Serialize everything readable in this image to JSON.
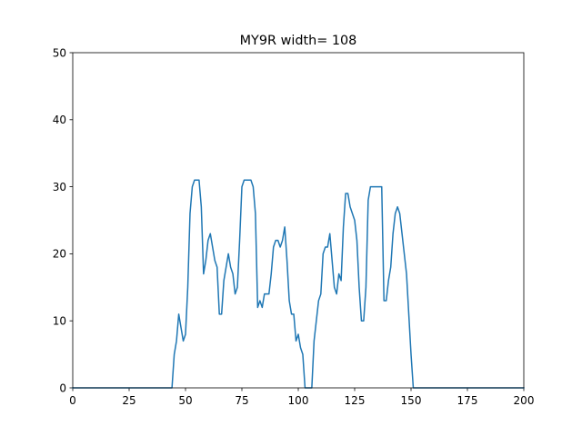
{
  "chart_data": {
    "type": "line",
    "title": "MY9R width= 108",
    "xlabel": "",
    "ylabel": "",
    "xlim": [
      0,
      200
    ],
    "ylim": [
      0,
      50
    ],
    "xticks": [
      0,
      25,
      50,
      75,
      100,
      125,
      150,
      175,
      200
    ],
    "yticks": [
      0,
      10,
      20,
      30,
      40,
      50
    ],
    "grid": false,
    "colors": {
      "series": "#1f77b4"
    },
    "series": [
      {
        "x": [
          0,
          44,
          45,
          46,
          47,
          48,
          49,
          50,
          51,
          52,
          53,
          54,
          55,
          56,
          57,
          58,
          59,
          60,
          61,
          62,
          63,
          64,
          65,
          66,
          67,
          68,
          69,
          70,
          71,
          72,
          73,
          74,
          75,
          76,
          77,
          78,
          79,
          80,
          81,
          82,
          83,
          84,
          85,
          86,
          87,
          88,
          89,
          90,
          91,
          92,
          93,
          94,
          95,
          96,
          97,
          98,
          99,
          100,
          101,
          102,
          103,
          104,
          105,
          106,
          107,
          108,
          109,
          110,
          111,
          112,
          113,
          114,
          115,
          116,
          117,
          118,
          119,
          120,
          121,
          122,
          123,
          124,
          125,
          126,
          127,
          128,
          129,
          130,
          131,
          132,
          133,
          134,
          135,
          136,
          137,
          138,
          139,
          140,
          141,
          142,
          143,
          144,
          145,
          146,
          147,
          148,
          149,
          150,
          151,
          152,
          200
        ],
        "y": [
          0,
          0,
          5,
          7,
          11,
          9,
          7,
          8,
          15,
          26,
          30,
          31,
          31,
          31,
          27,
          17,
          19,
          22,
          23,
          21,
          19,
          18,
          11,
          11,
          16,
          18,
          20,
          18,
          17,
          14,
          15,
          22,
          30,
          31,
          31,
          31,
          31,
          30,
          26,
          12,
          13,
          12,
          14,
          14,
          14,
          17,
          21,
          22,
          22,
          21,
          22,
          24,
          19,
          13,
          11,
          11,
          7,
          8,
          6,
          5,
          0,
          0,
          0,
          0,
          7,
          10,
          13,
          14,
          20,
          21,
          21,
          23,
          19,
          15,
          14,
          17,
          16,
          24,
          29,
          29,
          27,
          26,
          25,
          22,
          15,
          10,
          10,
          15,
          28,
          30,
          30,
          30,
          30,
          30,
          30,
          13,
          13,
          16,
          18,
          23,
          26,
          27,
          26,
          23,
          20,
          17,
          11,
          5,
          0,
          0,
          0
        ]
      }
    ]
  }
}
